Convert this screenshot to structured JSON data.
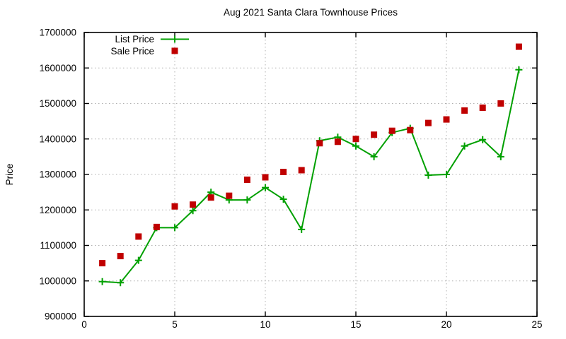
{
  "title": "Aug 2021 Santa Clara Townhouse Prices",
  "chart_data": {
    "type": "line",
    "title": "Aug 2021 Santa Clara Townhouse Prices",
    "xlabel": "",
    "ylabel": "Price",
    "xlim": [
      0,
      25
    ],
    "ylim": [
      900000,
      1700000
    ],
    "x_ticks": [
      0,
      5,
      10,
      15,
      20,
      25
    ],
    "y_ticks": [
      900000,
      1000000,
      1100000,
      1200000,
      1300000,
      1400000,
      1500000,
      1600000,
      1700000
    ],
    "grid": true,
    "grid_color": "#b0b0b0",
    "axis_color": "#000000",
    "legend_position": "top-left-inside",
    "x": [
      1,
      2,
      3,
      4,
      5,
      6,
      7,
      8,
      9,
      10,
      11,
      12,
      13,
      14,
      15,
      16,
      17,
      18,
      19,
      20,
      21,
      22,
      23,
      24
    ],
    "series": [
      {
        "name": "List Price",
        "style": "linespoints",
        "marker": "plus",
        "color": "#00a000",
        "values": [
          998000,
          995000,
          1058000,
          1150000,
          1150000,
          1198000,
          1250000,
          1228000,
          1228000,
          1263000,
          1230000,
          1145000,
          1395000,
          1405000,
          1380000,
          1350000,
          1418000,
          1430000,
          1298000,
          1300000,
          1380000,
          1398000,
          1350000,
          1595000
        ]
      },
      {
        "name": "Sale Price",
        "style": "points",
        "marker": "square",
        "color": "#c00000",
        "values": [
          1050000,
          1070000,
          1125000,
          1152000,
          1210000,
          1215000,
          1235000,
          1240000,
          1285000,
          1292000,
          1307000,
          1312000,
          1388000,
          1392000,
          1400000,
          1412000,
          1423000,
          1425000,
          1445000,
          1455000,
          1480000,
          1488000,
          1500000,
          1660000
        ]
      }
    ]
  }
}
